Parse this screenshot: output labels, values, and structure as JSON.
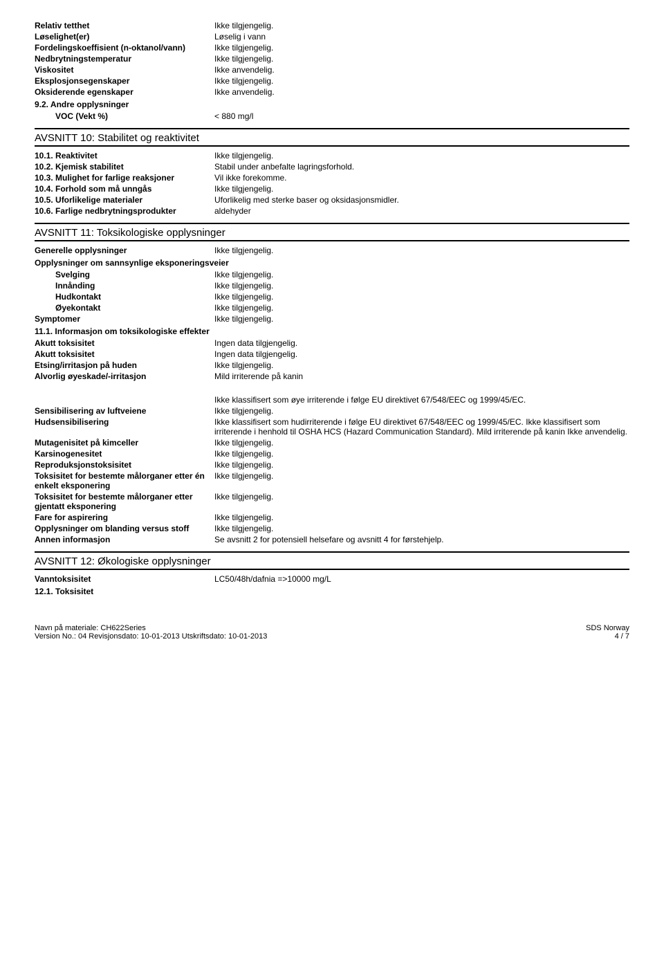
{
  "section9_props": [
    {
      "label": "Relativ tetthet",
      "value": "Ikke tilgjengelig."
    },
    {
      "label": "Løselighet(er)",
      "value": "Løselig i vann"
    },
    {
      "label": "Fordelingskoeffisient (n-oktanol/vann)",
      "value": "Ikke tilgjengelig."
    },
    {
      "label": "Nedbrytningstemperatur",
      "value": "Ikke tilgjengelig."
    },
    {
      "label": "Viskositet",
      "value": "Ikke anvendelig."
    },
    {
      "label": "Eksplosjonsegenskaper",
      "value": "Ikke tilgjengelig."
    },
    {
      "label": "Oksiderende egenskaper",
      "value": "Ikke anvendelig."
    }
  ],
  "section9_2": {
    "heading": "9.2. Andre opplysninger",
    "prop": {
      "label": "VOC (Vekt %)",
      "value": "< 880 mg/l"
    }
  },
  "section10": {
    "title": "AVSNITT 10: Stabilitet og reaktivitet",
    "rows": [
      {
        "label": "10.1. Reaktivitet",
        "value": "Ikke tilgjengelig."
      },
      {
        "label": "10.2. Kjemisk stabilitet",
        "value": "Stabil under anbefalte lagringsforhold."
      },
      {
        "label": "10.3. Mulighet for farlige reaksjoner",
        "value": "Vil ikke forekomme."
      },
      {
        "label": "10.4. Forhold som må unngås",
        "value": "Ikke tilgjengelig."
      },
      {
        "label": "10.5. Uforlikelige materialer",
        "value": "Uforlikelig med sterke baser og oksidasjonsmidler."
      },
      {
        "label": "10.6. Farlige nedbrytningsprodukter",
        "value": "aldehyder"
      }
    ]
  },
  "section11": {
    "title": "AVSNITT 11: Toksikologiske opplysninger",
    "general": {
      "label": "Generelle opplysninger",
      "value": "Ikke tilgjengelig."
    },
    "exp_heading": "Opplysninger om sannsynlige eksponeringsveier",
    "exp_rows": [
      {
        "label": "Svelging",
        "value": "Ikke tilgjengelig."
      },
      {
        "label": "Innånding",
        "value": "Ikke tilgjengelig."
      },
      {
        "label": "Hudkontakt",
        "value": "Ikke tilgjengelig."
      },
      {
        "label": "Øyekontakt",
        "value": "Ikke tilgjengelig."
      }
    ],
    "symptom": {
      "label": "Symptomer",
      "value": "Ikke tilgjengelig."
    },
    "sub111": "11.1. Informasjon om toksikologiske effekter",
    "tox_rows": [
      {
        "label": "Akutt toksisitet",
        "value": "Ingen data tilgjengelig."
      },
      {
        "label": "Akutt toksisitet",
        "value": "Ingen data tilgjengelig."
      },
      {
        "label": "Etsing/irritasjon på huden",
        "value": "Ikke tilgjengelig."
      },
      {
        "label": "Alvorlig øyeskade/-irritasjon",
        "value": "Mild irriterende på kanin"
      }
    ],
    "standalone_note": "Ikke klassifisert som øye irriterende i følge EU direktivet 67/548/EEC og 1999/45/EC.",
    "more_rows": [
      {
        "label": "Sensibilisering av luftveiene",
        "value": "Ikke tilgjengelig."
      },
      {
        "label": "Hudsensibilisering",
        "value": "Ikke klassifisert som hudirriterende i følge EU direktivet 67/548/EEC og 1999/45/EC. Ikke klassifisert som irriterende i henhold til OSHA HCS (Hazard Communication Standard). Mild irriterende på kanin Ikke anvendelig."
      },
      {
        "label": "Mutagenisitet på kimceller",
        "value": "Ikke tilgjengelig."
      },
      {
        "label": "Karsinogenesitet",
        "value": "Ikke tilgjengelig."
      },
      {
        "label": "Reproduksjonstoksisitet",
        "value": "Ikke tilgjengelig."
      },
      {
        "label": "Toksisitet for bestemte målorganer etter én enkelt eksponering",
        "value": "Ikke tilgjengelig."
      },
      {
        "label": "Toksisitet for bestemte målorganer etter gjentatt eksponering",
        "value": "Ikke tilgjengelig."
      },
      {
        "label": "Fare for aspirering",
        "value": "Ikke tilgjengelig."
      },
      {
        "label": "Opplysninger om blanding versus stoff",
        "value": "Ikke tilgjengelig."
      },
      {
        "label": "Annen informasjon",
        "value": "Se avsnitt 2 for potensiell helsefare og avsnitt 4 for førstehjelp."
      }
    ]
  },
  "section12": {
    "title": "AVSNITT 12: Økologiske opplysninger",
    "rows": [
      {
        "label": "Vanntoksisitet",
        "value": "LC50/48h/dafnia =>10000 mg/L"
      }
    ],
    "sub": "12.1. Toksisitet"
  },
  "footer": {
    "line1_left": "Navn på materiale: CH622Series",
    "line1_right": "SDS Norway",
    "line2_left": "Version No.: 04   Revisjonsdato: 10-01-2013   Utskriftsdato: 10-01-2013",
    "line2_right": "4 / 7"
  }
}
